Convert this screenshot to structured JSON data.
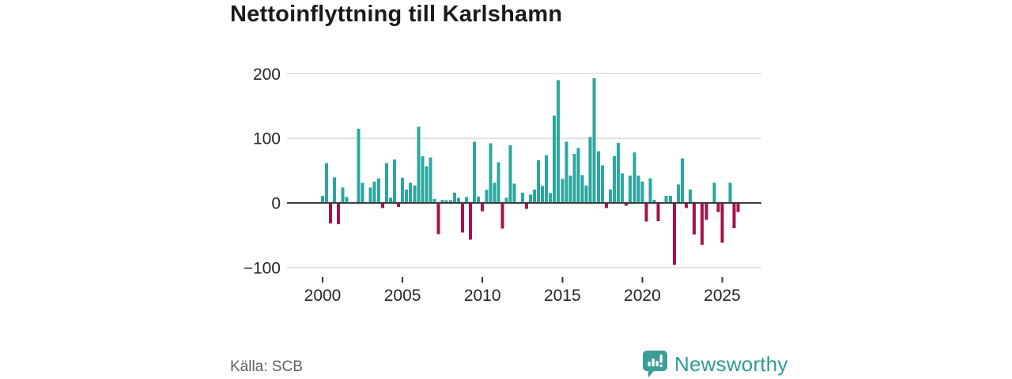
{
  "title": "Nettoinflyttning till Karlshamn",
  "source": "Källa: SCB",
  "branding": {
    "name": "Newsworthy",
    "color": "#2f9c95"
  },
  "chart_data": {
    "type": "bar",
    "title": "Nettoinflyttning till Karlshamn",
    "frequency": "quarterly",
    "start_year": 2000,
    "x_tick_labels": [
      "2000",
      "2005",
      "2010",
      "2015",
      "2020",
      "2025"
    ],
    "y_tick_labels": [
      "200",
      "100",
      "0",
      "−100"
    ],
    "y_ticks": [
      200,
      100,
      0,
      -100
    ],
    "ylim": [
      -125,
      215
    ],
    "grid": "horizontal",
    "legend": "none",
    "positive_color": "#2ba79f",
    "negative_color": "#a4134e",
    "zero_line_color": "#3d3d3d",
    "gridline_color": "#dcdcdc",
    "axis_text_color": "#262626",
    "values": [
      11,
      62,
      -32,
      40,
      -33,
      24,
      9,
      0,
      0,
      115,
      31,
      0,
      24,
      33,
      38,
      -8,
      62,
      8,
      67,
      -6,
      39,
      21,
      31,
      27,
      118,
      72,
      57,
      70,
      6,
      -48,
      5,
      4,
      4,
      16,
      8,
      -46,
      9,
      -57,
      95,
      10,
      -13,
      20,
      92,
      31,
      63,
      -40,
      8,
      89,
      30,
      0,
      16,
      -9,
      13,
      21,
      66,
      26,
      74,
      15,
      135,
      190,
      37,
      95,
      42,
      76,
      85,
      43,
      27,
      102,
      193,
      80,
      58,
      -8,
      21,
      73,
      93,
      46,
      -4,
      42,
      78,
      42,
      33,
      -29,
      38,
      5,
      -28,
      0,
      11,
      11,
      -96,
      29,
      69,
      -8,
      21,
      -49,
      0,
      -65,
      -26,
      0,
      31,
      -14,
      -62,
      0,
      31,
      -39,
      -14
    ]
  }
}
